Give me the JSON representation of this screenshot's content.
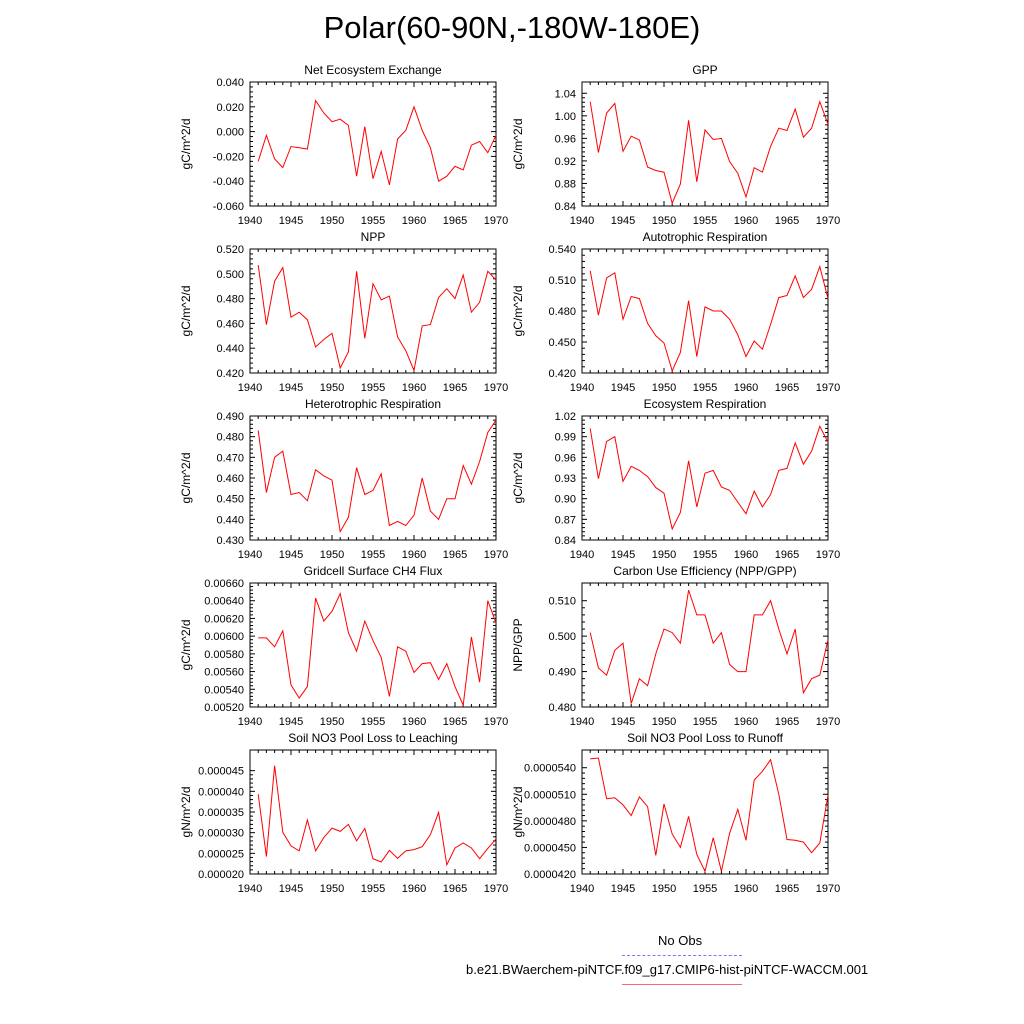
{
  "title": "Polar(60-90N,-180W-180E)",
  "line_color": "#ff0000",
  "chart_data": [
    {
      "type": "line",
      "title": "Net Ecosystem Exchange",
      "ylabel": "gC/m^2/d",
      "xlim": [
        1940,
        1970
      ],
      "ylim": [
        -0.06,
        0.04
      ],
      "xticks": [
        1940,
        1945,
        1950,
        1955,
        1960,
        1965,
        1970
      ],
      "xtick_labels": [
        "1940",
        "1945",
        "1950",
        "1955",
        "1960",
        "1965",
        "1970"
      ],
      "yticks": [
        -0.06,
        -0.04,
        -0.02,
        0.0,
        0.02,
        0.04
      ],
      "ytick_labels": [
        "-0.060",
        "-0.040",
        "-0.020",
        "0.000",
        "0.020",
        "0.040"
      ],
      "x": [
        1941,
        1942,
        1943,
        1944,
        1945,
        1946,
        1947,
        1948,
        1949,
        1950,
        1951,
        1952,
        1953,
        1954,
        1955,
        1956,
        1957,
        1958,
        1959,
        1960,
        1961,
        1962,
        1963,
        1964,
        1965,
        1966,
        1967,
        1968,
        1969,
        1970
      ],
      "values": [
        -0.024,
        -0.003,
        -0.022,
        -0.029,
        -0.012,
        -0.013,
        -0.014,
        0.025,
        0.015,
        0.008,
        0.01,
        0.005,
        -0.036,
        0.004,
        -0.038,
        -0.016,
        -0.043,
        -0.006,
        0.001,
        0.02,
        0.001,
        -0.013,
        -0.04,
        -0.036,
        -0.028,
        -0.031,
        -0.011,
        -0.008,
        -0.017,
        -0.003
      ]
    },
    {
      "type": "line",
      "title": "GPP",
      "ylabel": "gC/m^2/d",
      "xlim": [
        1940,
        1970
      ],
      "ylim": [
        0.84,
        1.06
      ],
      "xticks": [
        1940,
        1945,
        1950,
        1955,
        1960,
        1965,
        1970
      ],
      "xtick_labels": [
        "1940",
        "1945",
        "1950",
        "1955",
        "1960",
        "1965",
        "1970"
      ],
      "yticks": [
        0.84,
        0.88,
        0.92,
        0.96,
        1.0,
        1.04
      ],
      "ytick_labels": [
        "0.84",
        "0.88",
        "0.92",
        "0.96",
        "1.00",
        "1.04"
      ],
      "x": [
        1941,
        1942,
        1943,
        1944,
        1945,
        1946,
        1947,
        1948,
        1949,
        1950,
        1951,
        1952,
        1953,
        1954,
        1955,
        1956,
        1957,
        1958,
        1959,
        1960,
        1961,
        1962,
        1963,
        1964,
        1965,
        1966,
        1967,
        1968,
        1969,
        1970
      ],
      "values": [
        1.025,
        0.935,
        1.005,
        1.022,
        0.937,
        0.964,
        0.957,
        0.909,
        0.903,
        0.9,
        0.845,
        0.879,
        0.992,
        0.883,
        0.975,
        0.958,
        0.96,
        0.919,
        0.898,
        0.856,
        0.908,
        0.9,
        0.946,
        0.978,
        0.974,
        1.012,
        0.962,
        0.978,
        1.025,
        0.985
      ]
    },
    {
      "type": "line",
      "title": "NPP",
      "ylabel": "gC/m^2/d",
      "xlim": [
        1940,
        1970
      ],
      "ylim": [
        0.42,
        0.52
      ],
      "xticks": [
        1940,
        1945,
        1950,
        1955,
        1960,
        1965,
        1970
      ],
      "xtick_labels": [
        "1940",
        "1945",
        "1950",
        "1955",
        "1960",
        "1965",
        "1970"
      ],
      "yticks": [
        0.42,
        0.44,
        0.46,
        0.48,
        0.5,
        0.52
      ],
      "ytick_labels": [
        "0.420",
        "0.440",
        "0.460",
        "0.480",
        "0.500",
        "0.520"
      ],
      "x": [
        1941,
        1942,
        1943,
        1944,
        1945,
        1946,
        1947,
        1948,
        1949,
        1950,
        1951,
        1952,
        1953,
        1954,
        1955,
        1956,
        1957,
        1958,
        1959,
        1960,
        1961,
        1962,
        1963,
        1964,
        1965,
        1966,
        1967,
        1968,
        1969,
        1970
      ],
      "values": [
        0.507,
        0.459,
        0.494,
        0.505,
        0.465,
        0.469,
        0.463,
        0.441,
        0.447,
        0.452,
        0.424,
        0.437,
        0.502,
        0.448,
        0.492,
        0.479,
        0.482,
        0.449,
        0.438,
        0.422,
        0.458,
        0.459,
        0.481,
        0.488,
        0.48,
        0.499,
        0.469,
        0.477,
        0.502,
        0.495
      ]
    },
    {
      "type": "line",
      "title": "Autotrophic Respiration",
      "ylabel": "gC/m^2/d",
      "xlim": [
        1940,
        1970
      ],
      "ylim": [
        0.42,
        0.54
      ],
      "xticks": [
        1940,
        1945,
        1950,
        1955,
        1960,
        1965,
        1970
      ],
      "xtick_labels": [
        "1940",
        "1945",
        "1950",
        "1955",
        "1960",
        "1965",
        "1970"
      ],
      "yticks": [
        0.42,
        0.45,
        0.48,
        0.51,
        0.54
      ],
      "ytick_labels": [
        "0.420",
        "0.450",
        "0.480",
        "0.510",
        "0.540"
      ],
      "x": [
        1941,
        1942,
        1943,
        1944,
        1945,
        1946,
        1947,
        1948,
        1949,
        1950,
        1951,
        1952,
        1953,
        1954,
        1955,
        1956,
        1957,
        1958,
        1959,
        1960,
        1961,
        1962,
        1963,
        1964,
        1965,
        1966,
        1967,
        1968,
        1969,
        1970
      ],
      "values": [
        0.519,
        0.476,
        0.512,
        0.517,
        0.472,
        0.494,
        0.492,
        0.468,
        0.456,
        0.449,
        0.422,
        0.44,
        0.49,
        0.436,
        0.484,
        0.48,
        0.48,
        0.472,
        0.457,
        0.436,
        0.451,
        0.443,
        0.467,
        0.493,
        0.495,
        0.514,
        0.493,
        0.501,
        0.523,
        0.492
      ]
    },
    {
      "type": "line",
      "title": "Heterotrophic Respiration",
      "ylabel": "gC/m^2/d",
      "xlim": [
        1940,
        1970
      ],
      "ylim": [
        0.43,
        0.49
      ],
      "xticks": [
        1940,
        1945,
        1950,
        1955,
        1960,
        1965,
        1970
      ],
      "xtick_labels": [
        "1940",
        "1945",
        "1950",
        "1955",
        "1960",
        "1965",
        "1970"
      ],
      "yticks": [
        0.43,
        0.44,
        0.45,
        0.46,
        0.47,
        0.48,
        0.49
      ],
      "ytick_labels": [
        "0.430",
        "0.440",
        "0.450",
        "0.460",
        "0.470",
        "0.480",
        "0.490"
      ],
      "x": [
        1941,
        1942,
        1943,
        1944,
        1945,
        1946,
        1947,
        1948,
        1949,
        1950,
        1951,
        1952,
        1953,
        1954,
        1955,
        1956,
        1957,
        1958,
        1959,
        1960,
        1961,
        1962,
        1963,
        1964,
        1965,
        1966,
        1967,
        1968,
        1969,
        1970
      ],
      "values": [
        0.483,
        0.453,
        0.47,
        0.473,
        0.452,
        0.453,
        0.449,
        0.464,
        0.461,
        0.459,
        0.434,
        0.441,
        0.465,
        0.452,
        0.454,
        0.462,
        0.437,
        0.439,
        0.437,
        0.442,
        0.46,
        0.444,
        0.44,
        0.45,
        0.45,
        0.466,
        0.457,
        0.468,
        0.482,
        0.488
      ]
    },
    {
      "type": "line",
      "title": "Ecosystem Respiration",
      "ylabel": "gC/m^2/d",
      "xlim": [
        1940,
        1970
      ],
      "ylim": [
        0.84,
        1.02
      ],
      "xticks": [
        1940,
        1945,
        1950,
        1955,
        1960,
        1965,
        1970
      ],
      "xtick_labels": [
        "1940",
        "1945",
        "1950",
        "1955",
        "1960",
        "1965",
        "1970"
      ],
      "yticks": [
        0.84,
        0.87,
        0.9,
        0.93,
        0.96,
        0.99,
        1.02
      ],
      "ytick_labels": [
        "0.84",
        "0.87",
        "0.90",
        "0.93",
        "0.96",
        "0.99",
        "1.02"
      ],
      "x": [
        1941,
        1942,
        1943,
        1944,
        1945,
        1946,
        1947,
        1948,
        1949,
        1950,
        1951,
        1952,
        1953,
        1954,
        1955,
        1956,
        1957,
        1958,
        1959,
        1960,
        1961,
        1962,
        1963,
        1964,
        1965,
        1966,
        1967,
        1968,
        1969,
        1970
      ],
      "values": [
        1.002,
        0.929,
        0.983,
        0.99,
        0.925,
        0.947,
        0.941,
        0.932,
        0.916,
        0.908,
        0.856,
        0.88,
        0.955,
        0.888,
        0.937,
        0.941,
        0.917,
        0.912,
        0.895,
        0.878,
        0.911,
        0.888,
        0.906,
        0.941,
        0.944,
        0.981,
        0.95,
        0.969,
        1.005,
        0.982
      ]
    },
    {
      "type": "line",
      "title": "Gridcell Surface CH4 Flux",
      "ylabel": "gC/m^2/d",
      "xlim": [
        1940,
        1970
      ],
      "ylim": [
        0.0052,
        0.0066
      ],
      "xticks": [
        1940,
        1945,
        1950,
        1955,
        1960,
        1965,
        1970
      ],
      "xtick_labels": [
        "1940",
        "1945",
        "1950",
        "1955",
        "1960",
        "1965",
        "1970"
      ],
      "yticks": [
        0.0052,
        0.0054,
        0.0056,
        0.0058,
        0.006,
        0.0062,
        0.0064,
        0.0066
      ],
      "ytick_labels": [
        "0.00520",
        "0.00540",
        "0.00560",
        "0.00580",
        "0.00600",
        "0.00620",
        "0.00640",
        "0.00660"
      ],
      "x": [
        1941,
        1942,
        1943,
        1944,
        1945,
        1946,
        1947,
        1948,
        1949,
        1950,
        1951,
        1952,
        1953,
        1954,
        1955,
        1956,
        1957,
        1958,
        1959,
        1960,
        1961,
        1962,
        1963,
        1964,
        1965,
        1966,
        1967,
        1968,
        1969,
        1970
      ],
      "values": [
        0.00598,
        0.00598,
        0.00588,
        0.00606,
        0.00545,
        0.0053,
        0.00543,
        0.00643,
        0.00617,
        0.00628,
        0.00648,
        0.00604,
        0.00583,
        0.00617,
        0.00595,
        0.00576,
        0.00532,
        0.00588,
        0.00583,
        0.00559,
        0.00569,
        0.0057,
        0.00551,
        0.00569,
        0.00543,
        0.00522,
        0.00599,
        0.00548,
        0.0064,
        0.00615
      ]
    },
    {
      "type": "line",
      "title": "Carbon Use Efficiency (NPP/GPP)",
      "ylabel": "NPP/GPP",
      "xlim": [
        1940,
        1970
      ],
      "ylim": [
        0.48,
        0.515
      ],
      "xticks": [
        1940,
        1945,
        1950,
        1955,
        1960,
        1965,
        1970
      ],
      "xtick_labels": [
        "1940",
        "1945",
        "1950",
        "1955",
        "1960",
        "1965",
        "1970"
      ],
      "yticks": [
        0.48,
        0.49,
        0.5,
        0.51
      ],
      "ytick_labels": [
        "0.480",
        "0.490",
        "0.500",
        "0.510"
      ],
      "x": [
        1941,
        1942,
        1943,
        1944,
        1945,
        1946,
        1947,
        1948,
        1949,
        1950,
        1951,
        1952,
        1953,
        1954,
        1955,
        1956,
        1957,
        1958,
        1959,
        1960,
        1961,
        1962,
        1963,
        1964,
        1965,
        1966,
        1967,
        1968,
        1969,
        1970
      ],
      "values": [
        0.501,
        0.491,
        0.489,
        0.496,
        0.498,
        0.481,
        0.488,
        0.486,
        0.495,
        0.502,
        0.501,
        0.498,
        0.513,
        0.506,
        0.506,
        0.498,
        0.501,
        0.492,
        0.49,
        0.49,
        0.506,
        0.506,
        0.51,
        0.502,
        0.495,
        0.502,
        0.484,
        0.488,
        0.489,
        0.499
      ]
    },
    {
      "type": "line",
      "title": "Soil NO3 Pool Loss to Leaching",
      "ylabel": "gN/m^2/d",
      "xlim": [
        1940,
        1970
      ],
      "ylim": [
        2e-05,
        5e-05
      ],
      "xticks": [
        1940,
        1945,
        1950,
        1955,
        1960,
        1965,
        1970
      ],
      "xtick_labels": [
        "1940",
        "1945",
        "1950",
        "1955",
        "1960",
        "1965",
        "1970"
      ],
      "yticks": [
        2e-05,
        2.5e-05,
        3e-05,
        3.5e-05,
        4e-05,
        4.5e-05
      ],
      "ytick_labels": [
        "0.000020",
        "0.000025",
        "0.000030",
        "0.000035",
        "0.000040",
        "0.000045"
      ],
      "x": [
        1941,
        1942,
        1943,
        1944,
        1945,
        1946,
        1947,
        1948,
        1949,
        1950,
        1951,
        1952,
        1953,
        1954,
        1955,
        1956,
        1957,
        1958,
        1959,
        1960,
        1961,
        1962,
        1963,
        1964,
        1965,
        1966,
        1967,
        1968,
        1969,
        1970
      ],
      "values": [
        3.93e-05,
        2.42e-05,
        4.62e-05,
        3.01e-05,
        2.68e-05,
        2.56e-05,
        3.31e-05,
        2.56e-05,
        2.88e-05,
        3.11e-05,
        3.03e-05,
        3.2e-05,
        2.8e-05,
        3.1e-05,
        2.37e-05,
        2.29e-05,
        2.57e-05,
        2.38e-05,
        2.56e-05,
        2.59e-05,
        2.66e-05,
        2.95e-05,
        3.49e-05,
        2.22e-05,
        2.63e-05,
        2.75e-05,
        2.63e-05,
        2.37e-05,
        2.62e-05,
        2.85e-05
      ]
    },
    {
      "type": "line",
      "title": "Soil NO3 Pool Loss to Runoff",
      "ylabel": "gN/m^2/d",
      "xlim": [
        1940,
        1970
      ],
      "ylim": [
        4.2e-05,
        5.6e-05
      ],
      "xticks": [
        1940,
        1945,
        1950,
        1955,
        1960,
        1965,
        1970
      ],
      "xtick_labels": [
        "1940",
        "1945",
        "1950",
        "1955",
        "1960",
        "1965",
        "1970"
      ],
      "yticks": [
        4.2e-05,
        4.5e-05,
        4.8e-05,
        5.1e-05,
        5.4e-05
      ],
      "ytick_labels": [
        "0.0000420",
        "0.0000450",
        "0.0000480",
        "0.0000510",
        "0.0000540"
      ],
      "x": [
        1941,
        1942,
        1943,
        1944,
        1945,
        1946,
        1947,
        1948,
        1949,
        1950,
        1951,
        1952,
        1953,
        1954,
        1955,
        1956,
        1957,
        1958,
        1959,
        1960,
        1961,
        1962,
        1963,
        1964,
        1965,
        1966,
        1967,
        1968,
        1969,
        1970
      ],
      "values": [
        5.5e-05,
        5.51e-05,
        5.05e-05,
        5.06e-05,
        4.98e-05,
        4.86e-05,
        5.07e-05,
        4.96e-05,
        4.41e-05,
        4.99e-05,
        4.65e-05,
        4.5e-05,
        4.85e-05,
        4.42e-05,
        4.23e-05,
        4.61e-05,
        4.23e-05,
        4.66e-05,
        4.93e-05,
        4.58e-05,
        5.26e-05,
        5.36e-05,
        5.49e-05,
        5.1e-05,
        4.59e-05,
        4.58e-05,
        4.56e-05,
        4.44e-05,
        4.55e-05,
        5.09e-05
      ]
    }
  ],
  "legend": {
    "obs_label": "No Obs",
    "obs_color": "#0000ff",
    "model_label": "b.e21.BWaerchem-piNTCF.f09_g17.CMIP6-hist-piNTCF-WACCM.001",
    "model_color": "#ff0000"
  }
}
